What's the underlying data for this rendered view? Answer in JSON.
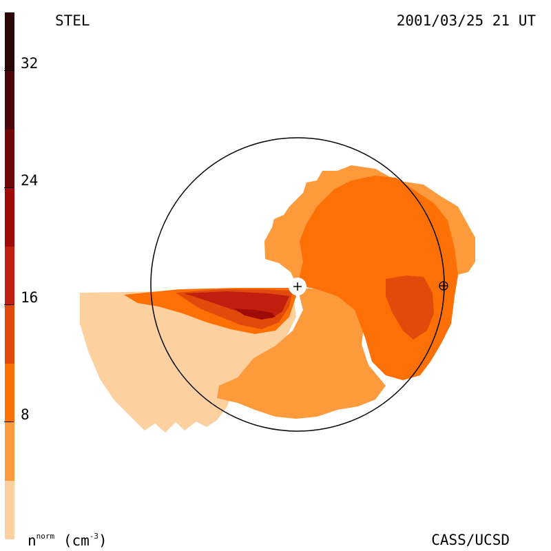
{
  "header": {
    "instrument": "STEL",
    "timestamp": "2001/03/25 21 UT"
  },
  "footer": {
    "credit": "CASS/UCSD",
    "units_base": "n",
    "units_sup": "norm",
    "units_paren": "(cm",
    "units_exp": "-3",
    "units_close": ")"
  },
  "colorbar": {
    "ticks": [
      "32",
      "24",
      "16",
      "8"
    ],
    "levels": [
      {
        "range": "0-4",
        "color": "#fdd0a0"
      },
      {
        "range": "4-8",
        "color": "#fd9a3c"
      },
      {
        "range": "8-12",
        "color": "#fd7005"
      },
      {
        "range": "12-16",
        "color": "#e04a0a"
      },
      {
        "range": "16-20",
        "color": "#c01e0e"
      },
      {
        "range": "20-24",
        "color": "#a00a08"
      },
      {
        "range": "24-28",
        "color": "#700808"
      },
      {
        "range": "28-32",
        "color": "#4a0808"
      },
      {
        "range": "32-36",
        "color": "#2a0606"
      }
    ]
  },
  "map": {
    "sun_symbol": "+",
    "earth_symbol": "⊕"
  }
}
